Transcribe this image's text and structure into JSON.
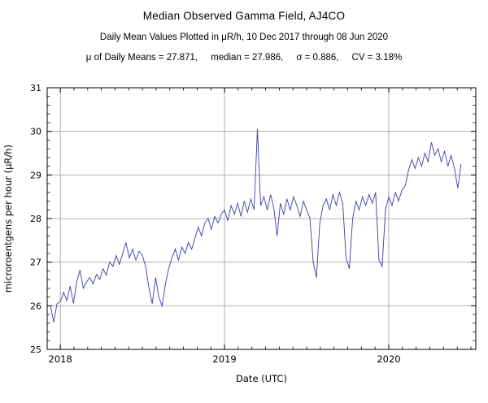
{
  "title": "Median Observed Gamma Field, AJ4CO",
  "subtitle": "Daily Mean Values Plotted in μR/h, 10 Dec 2017 through 08 Jun 2020",
  "stats": {
    "parts": [
      "μ of Daily Means = 27.871,",
      "median = 27.986,",
      "σ = 0.886,",
      "CV = 3.18%"
    ],
    "mean": 27.871,
    "median": 27.986,
    "sigma": 0.886,
    "cv_percent": 3.18
  },
  "chart_data": {
    "type": "line",
    "title": "Median Observed Gamma Field, AJ4CO",
    "xlabel": "Date (UTC)",
    "ylabel": "microroentgens per hour (μR/h)",
    "xlim": [
      2017.92,
      2020.53
    ],
    "ylim": [
      25,
      31
    ],
    "yticks": [
      25,
      26,
      27,
      28,
      29,
      30,
      31
    ],
    "xticks": [
      {
        "value": 2018,
        "label": "2018"
      },
      {
        "value": 2019,
        "label": "2019"
      },
      {
        "value": 2020,
        "label": "2020"
      }
    ],
    "y_minor_step": 0.2,
    "x_minor_step": 0.0833333,
    "grid": true,
    "legend": "none",
    "line_color": "#3d3da8",
    "grid_color": "#b0b0b0",
    "frame_color": "#000000",
    "x_start": 2017.94,
    "x_step": 0.02,
    "y": [
      26.0,
      25.62,
      26.05,
      26.1,
      26.31,
      26.12,
      26.45,
      26.05,
      26.55,
      26.82,
      26.4,
      26.55,
      26.65,
      26.5,
      26.72,
      26.6,
      26.85,
      26.7,
      27.0,
      26.9,
      27.15,
      26.95,
      27.2,
      27.45,
      27.1,
      27.3,
      27.05,
      27.25,
      27.15,
      26.9,
      26.4,
      26.05,
      26.65,
      26.2,
      26.0,
      26.5,
      26.85,
      27.1,
      27.3,
      27.05,
      27.35,
      27.2,
      27.45,
      27.3,
      27.55,
      27.8,
      27.6,
      27.9,
      28.0,
      27.75,
      28.05,
      27.9,
      28.1,
      28.2,
      27.95,
      28.3,
      28.1,
      28.35,
      28.05,
      28.4,
      28.15,
      28.45,
      28.2,
      30.05,
      28.3,
      28.5,
      28.2,
      28.55,
      28.25,
      27.6,
      28.35,
      28.1,
      28.45,
      28.2,
      28.5,
      28.3,
      28.05,
      28.4,
      28.2,
      28.0,
      27.0,
      26.65,
      27.9,
      28.3,
      28.45,
      28.2,
      28.55,
      28.3,
      28.6,
      28.35,
      27.1,
      26.85,
      28.0,
      28.4,
      28.2,
      28.5,
      28.3,
      28.55,
      28.35,
      28.6,
      27.05,
      26.9,
      28.2,
      28.5,
      28.3,
      28.6,
      28.4,
      28.65,
      28.75,
      29.1,
      29.35,
      29.15,
      29.4,
      29.2,
      29.5,
      29.3,
      29.75,
      29.45,
      29.6,
      29.3,
      29.55,
      29.2,
      29.45,
      29.15,
      28.7,
      29.25
    ]
  }
}
